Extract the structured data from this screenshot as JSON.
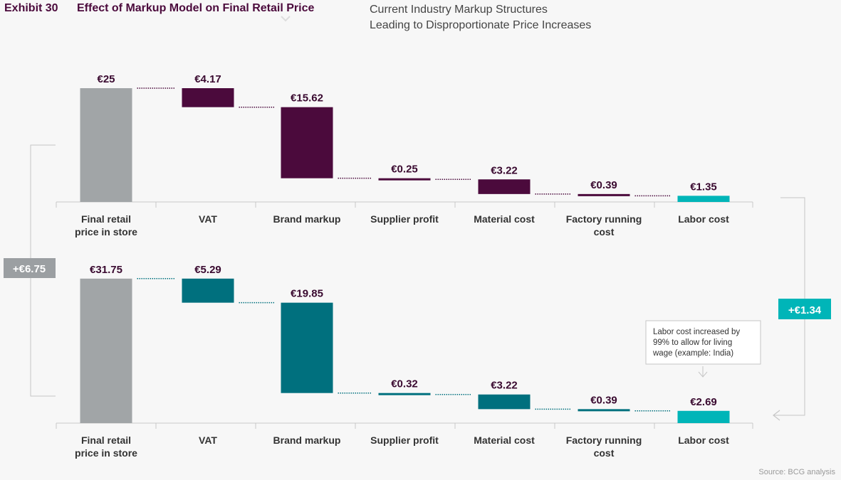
{
  "header": {
    "exhibit": "Exhibit 30",
    "title": "Effect of Markup Model on Final Retail Price",
    "subtitle_line1": "Current Industry Markup Structures",
    "subtitle_line2": "Leading to Disproportionate Price Increases"
  },
  "source": "Source: BCG analysis",
  "colors": {
    "total_bar": "#a1a5a7",
    "current_bar": "#4b0a3c",
    "proposed_bar": "#00707e",
    "labor_bar": "#00b5b8",
    "label_text": "#3a0a30",
    "badge_gray": "#9b9fa2",
    "badge_teal": "#00b5b8"
  },
  "chart_data": [
    {
      "type": "waterfall",
      "name": "",
      "categories": [
        "Final retail price in store",
        "VAT",
        "Brand markup",
        "Supplier profit",
        "Material cost",
        "Factory running cost",
        "Labor cost"
      ],
      "tick_labels": [
        [
          "Final retail",
          "price in store"
        ],
        [
          "VAT"
        ],
        [
          "Brand markup"
        ],
        [
          "Supplier profit"
        ],
        [
          "Material cost"
        ],
        [
          "Factory running",
          "cost"
        ],
        [
          "Labor cost"
        ]
      ],
      "value_labels": [
        "€25",
        "€4.17",
        "€15.62",
        "€0.25",
        "€3.22",
        "€0.39",
        "€1.35"
      ],
      "values": [
        25,
        4.17,
        15.62,
        0.25,
        3.22,
        0.39,
        1.35
      ],
      "unit": "EUR"
    },
    {
      "type": "waterfall",
      "name": "",
      "categories": [
        "Final retail price in store",
        "VAT",
        "Brand markup",
        "Supplier profit",
        "Material cost",
        "Factory running cost",
        "Labor cost"
      ],
      "tick_labels": [
        [
          "Final retail",
          "price in store"
        ],
        [
          "VAT"
        ],
        [
          "Brand markup"
        ],
        [
          "Supplier profit"
        ],
        [
          "Material cost"
        ],
        [
          "Factory running",
          "cost"
        ],
        [
          "Labor cost"
        ]
      ],
      "value_labels": [
        "€31.75",
        "€5.29",
        "€19.85",
        "€0.32",
        "€3.22",
        "€0.39",
        "€2.69"
      ],
      "values": [
        31.75,
        5.29,
        19.85,
        0.32,
        3.22,
        0.39,
        2.69
      ],
      "unit": "EUR"
    }
  ],
  "annotations": {
    "total_difference": "+€6.75",
    "labor_difference": "+€1.34",
    "labor_note": [
      "Labor cost increased by",
      "99% to allow for living",
      "wage (example: India)"
    ]
  }
}
